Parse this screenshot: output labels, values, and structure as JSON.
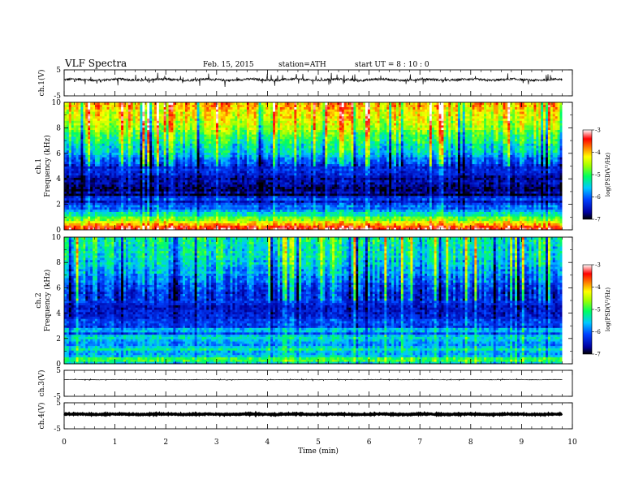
{
  "header": {
    "title": "VLF Spectra",
    "date": "Feb. 15, 2015",
    "station": "station=ATH",
    "start": "start  UT =  8 : 10 : 0"
  },
  "chart_data": {
    "type": "heatmap",
    "xlabel": "Time (min)",
    "xlim": [
      0,
      10
    ],
    "xticks": [
      "0",
      "1",
      "2",
      "3",
      "4",
      "5",
      "6",
      "7",
      "8",
      "9",
      "10"
    ],
    "data_end_min": 9.8,
    "panels": [
      {
        "id": "ch1-waveform",
        "type": "line",
        "ylabel": "ch.1(V)",
        "ylim": [
          -5,
          5
        ],
        "yticks": [
          "5",
          "-5"
        ],
        "mean_level": 1.2,
        "noise_amp": 0.45,
        "spike_amp": 1.5
      },
      {
        "id": "ch1-spectrogram",
        "type": "heatmap",
        "ylabel": "ch.1\nFrequency (kHz)",
        "ylim": [
          0,
          10
        ],
        "yticks": [
          "0",
          "2",
          "4",
          "6",
          "8",
          "10"
        ],
        "colorbar": {
          "label": "log(PSD(V²/Hz)",
          "range": [
            -7,
            -3
          ],
          "ticks": [
            "-3",
            "-4",
            "-5",
            "-6",
            "-7"
          ]
        },
        "frequency_levels_kHz": [
          0,
          1,
          2,
          3,
          4,
          5,
          6,
          7,
          8,
          9,
          10
        ],
        "typical_log_psd": [
          -3.5,
          -5.0,
          -6.2,
          -6.8,
          -6.6,
          -6.3,
          -5.6,
          -5.2,
          -4.6,
          -4.3,
          -4.0
        ]
      },
      {
        "id": "ch2-spectrogram",
        "type": "heatmap",
        "ylabel": "ch.2\nFrequency (kHz)",
        "ylim": [
          0,
          10
        ],
        "yticks": [
          "0",
          "2",
          "4",
          "6",
          "8",
          "10"
        ],
        "colorbar": {
          "label": "log(PSD(V²/Hz)",
          "range": [
            -7,
            -3
          ],
          "ticks": [
            "-3",
            "-4",
            "-5",
            "-6",
            "-7"
          ]
        },
        "frequency_levels_kHz": [
          0,
          1,
          2,
          3,
          4,
          5,
          6,
          7,
          8,
          9,
          10
        ],
        "typical_log_psd": [
          -5.2,
          -5.4,
          -5.7,
          -6.0,
          -6.5,
          -6.3,
          -6.2,
          -5.8,
          -5.5,
          -5.3,
          -5.2
        ]
      },
      {
        "id": "ch3-waveform",
        "type": "line",
        "ylabel": "ch.3(V)",
        "ylim": [
          -5,
          5
        ],
        "yticks": [
          "5",
          "-5"
        ],
        "mean_level": 1.4,
        "noise_amp": 0.08,
        "spike_amp": 0.2
      },
      {
        "id": "ch4-waveform",
        "type": "line",
        "ylabel": "ch.4(V)",
        "ylim": [
          -5,
          5
        ],
        "yticks": [
          "5",
          "-5"
        ],
        "mean_level": 0.6,
        "noise_amp": 0.15,
        "spike_amp": 0.0
      }
    ]
  }
}
